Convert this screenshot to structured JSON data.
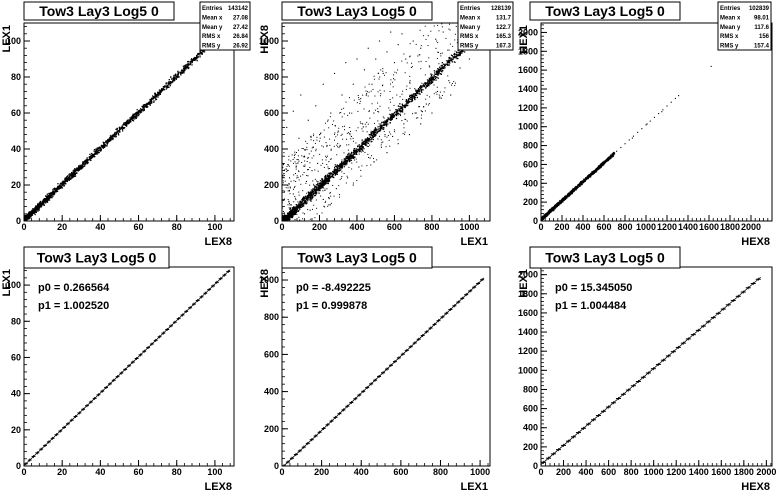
{
  "chart_data": [
    {
      "type": "scatter",
      "title": "Tow3 Lay3 Log5 0",
      "xlabel": "LEX8",
      "ylabel": "LEX1",
      "xlim": [
        0,
        110
      ],
      "ylim": [
        0,
        110
      ],
      "xticks": [
        0,
        20,
        40,
        60,
        80,
        100
      ],
      "xtick_labels": [
        "0",
        "20",
        "40",
        "60",
        "80",
        "100"
      ],
      "yticks": [
        0,
        20,
        40,
        60,
        80,
        100
      ],
      "ytick_labels": [
        "0",
        "20",
        "40",
        "60",
        "80",
        "100"
      ],
      "stats": [
        {
          "label": "Entries",
          "value": "143142"
        },
        {
          "label": "Mean x",
          "value": "27.08"
        },
        {
          "label": "Mean y",
          "value": "27.42"
        },
        {
          "label": "RMS x",
          "value": "26.84"
        },
        {
          "label": "RMS y",
          "value": "26.92"
        }
      ],
      "trend": {
        "x": [
          0,
          108
        ],
        "y": [
          0.3,
          108.6
        ],
        "spread": 0.9,
        "density": "dense"
      },
      "outliers": []
    },
    {
      "type": "scatter",
      "title": "Tow3 Lay3 Log5 0",
      "xlabel": "LEX1",
      "ylabel": "HEX8",
      "xlim": [
        0,
        1110
      ],
      "ylim": [
        0,
        1100
      ],
      "xticks": [
        0,
        200,
        400,
        600,
        800,
        1000
      ],
      "xtick_labels": [
        "0",
        "200",
        "400",
        "600",
        "800",
        "1000"
      ],
      "yticks": [
        0,
        200,
        400,
        600,
        800,
        1000
      ],
      "ytick_labels": [
        "0",
        "200",
        "400",
        "600",
        "800",
        "1000"
      ],
      "stats": [
        {
          "label": "Entries",
          "value": "128139"
        },
        {
          "label": "Mean x",
          "value": "131.7"
        },
        {
          "label": "Mean y",
          "value": "122.7"
        },
        {
          "label": "RMS x",
          "value": "165.3"
        },
        {
          "label": "RMS y",
          "value": "167.3"
        }
      ],
      "trend": {
        "x": [
          0,
          1020
        ],
        "y": [
          -8.5,
          1011
        ],
        "spread": 12,
        "density": "dense"
      },
      "outliers": [
        {
          "x": 10,
          "y": 380
        },
        {
          "x": 25,
          "y": 520
        },
        {
          "x": 40,
          "y": 240
        },
        {
          "x": 60,
          "y": 610
        },
        {
          "x": 75,
          "y": 300
        },
        {
          "x": 90,
          "y": 460
        },
        {
          "x": 100,
          "y": 700
        },
        {
          "x": 120,
          "y": 360
        },
        {
          "x": 140,
          "y": 560
        },
        {
          "x": 160,
          "y": 280
        },
        {
          "x": 180,
          "y": 640
        },
        {
          "x": 200,
          "y": 480
        },
        {
          "x": 220,
          "y": 760
        },
        {
          "x": 240,
          "y": 420
        },
        {
          "x": 260,
          "y": 600
        },
        {
          "x": 280,
          "y": 820
        },
        {
          "x": 300,
          "y": 500
        },
        {
          "x": 320,
          "y": 700
        },
        {
          "x": 340,
          "y": 880
        },
        {
          "x": 360,
          "y": 600
        },
        {
          "x": 380,
          "y": 760
        },
        {
          "x": 400,
          "y": 900
        },
        {
          "x": 420,
          "y": 680
        },
        {
          "x": 440,
          "y": 840
        },
        {
          "x": 460,
          "y": 960
        },
        {
          "x": 480,
          "y": 760
        },
        {
          "x": 500,
          "y": 900
        },
        {
          "x": 520,
          "y": 1000
        },
        {
          "x": 540,
          "y": 820
        },
        {
          "x": 560,
          "y": 940
        },
        {
          "x": 580,
          "y": 1050
        },
        {
          "x": 600,
          "y": 880
        },
        {
          "x": 620,
          "y": 980
        },
        {
          "x": 640,
          "y": 1040
        },
        {
          "x": 660,
          "y": 900
        },
        {
          "x": 700,
          "y": 1000
        },
        {
          "x": 740,
          "y": 960
        },
        {
          "x": 780,
          "y": 1030
        },
        {
          "x": 820,
          "y": 1010
        },
        {
          "x": 860,
          "y": 1050
        },
        {
          "x": 60,
          "y": 150
        },
        {
          "x": 130,
          "y": 220
        },
        {
          "x": 190,
          "y": 320
        },
        {
          "x": 250,
          "y": 330
        },
        {
          "x": 310,
          "y": 420
        },
        {
          "x": 370,
          "y": 470
        },
        {
          "x": 430,
          "y": 540
        },
        {
          "x": 490,
          "y": 600
        },
        {
          "x": 150,
          "y": 60
        },
        {
          "x": 220,
          "y": 120
        },
        {
          "x": 290,
          "y": 180
        },
        {
          "x": 350,
          "y": 240
        },
        {
          "x": 410,
          "y": 300
        },
        {
          "x": 470,
          "y": 350
        },
        {
          "x": 530,
          "y": 410
        },
        {
          "x": 590,
          "y": 470
        },
        {
          "x": 650,
          "y": 540
        },
        {
          "x": 710,
          "y": 600
        },
        {
          "x": 770,
          "y": 650
        },
        {
          "x": 830,
          "y": 720
        },
        {
          "x": 890,
          "y": 780
        },
        {
          "x": 950,
          "y": 850
        },
        {
          "x": 1000,
          "y": 900
        },
        {
          "x": 560,
          "y": 380
        },
        {
          "x": 680,
          "y": 480
        },
        {
          "x": 800,
          "y": 600
        },
        {
          "x": 900,
          "y": 700
        },
        {
          "x": 120,
          "y": 40
        },
        {
          "x": 250,
          "y": 90
        },
        {
          "x": 380,
          "y": 200
        },
        {
          "x": 620,
          "y": 430
        },
        {
          "x": 740,
          "y": 540
        }
      ]
    },
    {
      "type": "scatter",
      "title": "Tow3 Lay3 Log5 0",
      "xlabel": "HEX8",
      "ylabel": "HEX1",
      "xlim": [
        0,
        2200
      ],
      "ylim": [
        0,
        2100
      ],
      "xticks": [
        0,
        200,
        400,
        600,
        800,
        1000,
        1200,
        1400,
        1600,
        1800,
        2000
      ],
      "xtick_labels": [
        "0",
        "200",
        "400",
        "600",
        "800",
        "1000",
        "1200",
        "1400",
        "1600",
        "1800",
        "2000"
      ],
      "yticks": [
        0,
        200,
        400,
        600,
        800,
        1000,
        1200,
        1400,
        1600,
        1800,
        2000
      ],
      "ytick_labels": [
        "0",
        "200",
        "400",
        "600",
        "800",
        "1000",
        "1200",
        "1400",
        "1600",
        "1800",
        "2000"
      ],
      "stats": [
        {
          "label": "Entries",
          "value": "102839"
        },
        {
          "label": "Mean x",
          "value": "98.01"
        },
        {
          "label": "Mean y",
          "value": "117.6"
        },
        {
          "label": "RMS x",
          "value": "156"
        },
        {
          "label": "RMS y",
          "value": "157.4"
        }
      ],
      "trend": {
        "x": [
          0,
          700
        ],
        "y": [
          15,
          718
        ],
        "spread": 8,
        "density": "dense"
      },
      "outliers": [
        {
          "x": 720,
          "y": 740
        },
        {
          "x": 760,
          "y": 780
        },
        {
          "x": 800,
          "y": 820
        },
        {
          "x": 840,
          "y": 860
        },
        {
          "x": 880,
          "y": 900
        },
        {
          "x": 920,
          "y": 940
        },
        {
          "x": 960,
          "y": 980
        },
        {
          "x": 1000,
          "y": 1020
        },
        {
          "x": 1040,
          "y": 1060
        },
        {
          "x": 1080,
          "y": 1100
        },
        {
          "x": 1120,
          "y": 1140
        },
        {
          "x": 1160,
          "y": 1180
        },
        {
          "x": 1200,
          "y": 1220
        },
        {
          "x": 1240,
          "y": 1260
        },
        {
          "x": 1280,
          "y": 1300
        },
        {
          "x": 1310,
          "y": 1330
        },
        {
          "x": 1620,
          "y": 1640
        },
        {
          "x": 1010,
          "y": 1030
        },
        {
          "x": 1150,
          "y": 1160
        },
        {
          "x": 870,
          "y": 880
        }
      ]
    },
    {
      "type": "line",
      "title": "Tow3 Lay3 Log5 0",
      "xlabel": "LEX8",
      "ylabel": "LEX1",
      "xlim": [
        0,
        110
      ],
      "ylim": [
        0,
        110
      ],
      "xticks": [
        0,
        20,
        40,
        60,
        80,
        100
      ],
      "xtick_labels": [
        "0",
        "20",
        "40",
        "60",
        "80",
        "100"
      ],
      "yticks": [
        0,
        20,
        40,
        60,
        80,
        100
      ],
      "ytick_labels": [
        "0",
        "20",
        "40",
        "60",
        "80",
        "100"
      ],
      "fit": {
        "p0": 0.266564,
        "p1": 1.00252,
        "labels": [
          "p0 = 0.266564",
          "p1 = 1.002520"
        ]
      },
      "fit_range": [
        0,
        108
      ],
      "profile_points": 54
    },
    {
      "type": "line",
      "title": "Tow3 Lay3 Log5 0",
      "xlabel": "LEX1",
      "ylabel": "HEX8",
      "xlim": [
        0,
        1050
      ],
      "ylim": [
        0,
        1070
      ],
      "xticks": [
        0,
        200,
        400,
        600,
        800,
        1000
      ],
      "xtick_labels": [
        "0",
        "200",
        "400",
        "600",
        "800",
        "1000"
      ],
      "yticks": [
        0,
        200,
        400,
        600,
        800,
        1000
      ],
      "ytick_labels": [
        "0",
        "200",
        "400",
        "600",
        "800",
        "1000"
      ],
      "fit": {
        "p0": -8.492225,
        "p1": 0.999878,
        "labels": [
          "p0 = -8.492225",
          "p1 = 0.999878"
        ]
      },
      "fit_range": [
        0,
        1020
      ],
      "profile_points": 51
    },
    {
      "type": "line",
      "title": "Tow3 Lay3 Log5 0",
      "xlabel": "HEX8",
      "ylabel": "HEX1",
      "xlim": [
        0,
        2050
      ],
      "ylim": [
        0,
        2080
      ],
      "xticks": [
        0,
        200,
        400,
        600,
        800,
        1000,
        1200,
        1400,
        1600,
        1800,
        2000
      ],
      "xtick_labels": [
        "0",
        "200",
        "400",
        "600",
        "800",
        "1000",
        "1200",
        "1400",
        "1600",
        "1800",
        "2000"
      ],
      "yticks": [
        0,
        200,
        400,
        600,
        800,
        1000,
        1200,
        1400,
        1600,
        1800,
        2000
      ],
      "ytick_labels": [
        "0",
        "200",
        "400",
        "600",
        "800",
        "1000",
        "1200",
        "1400",
        "1600",
        "1800",
        "2000"
      ],
      "fit": {
        "p0": 15.34505,
        "p1": 1.004484,
        "labels": [
          "p0 = 15.345050",
          "p1 = 1.004484"
        ]
      },
      "fit_range": [
        0,
        1950
      ],
      "profile_points": 44
    }
  ]
}
